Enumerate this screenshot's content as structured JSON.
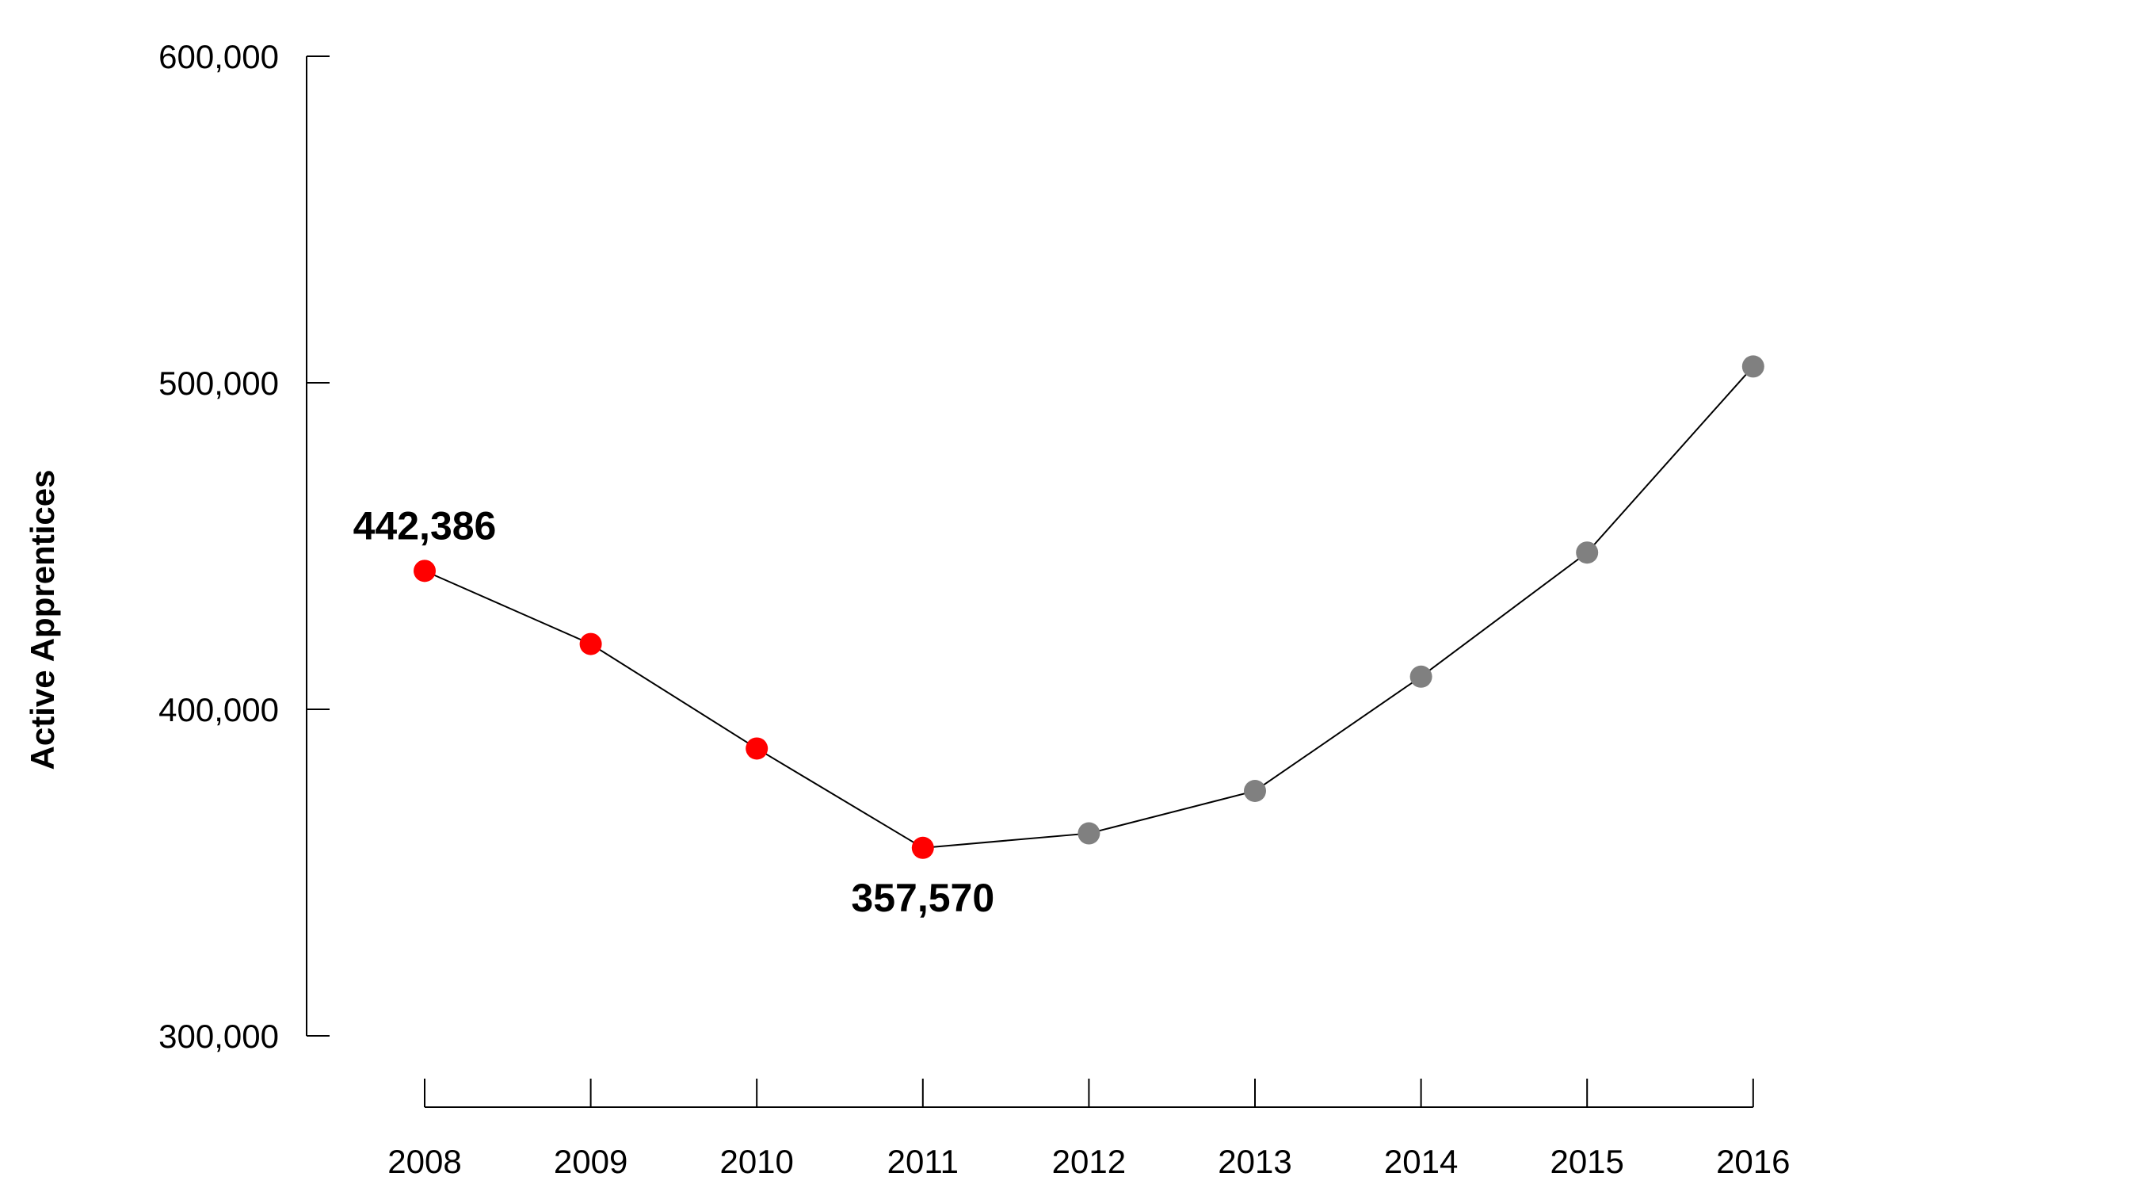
{
  "chart_data": {
    "type": "line",
    "title": "",
    "xlabel": "",
    "ylabel": "Active Apprentices",
    "x": [
      "2008",
      "2009",
      "2010",
      "2011",
      "2012",
      "2013",
      "2014",
      "2015",
      "2016"
    ],
    "values": [
      442386,
      420000,
      388000,
      357570,
      362000,
      375000,
      410000,
      448000,
      505000
    ],
    "point_colors": [
      "#ff0000",
      "#ff0000",
      "#ff0000",
      "#ff0000",
      "#808080",
      "#808080",
      "#808080",
      "#808080",
      "#808080"
    ],
    "line_color": "#000000",
    "ylim": [
      300000,
      600000
    ],
    "yticks": [
      300000,
      400000,
      500000,
      600000
    ],
    "ytick_labels": [
      "300,000",
      "400,000",
      "500,000",
      "600,000"
    ],
    "grid": false,
    "legend": "none",
    "annotations": [
      {
        "x": "2008",
        "value": 442386,
        "text": "442,386",
        "position": "above"
      },
      {
        "x": "2011",
        "value": 357570,
        "text": "357,570",
        "position": "below"
      }
    ]
  }
}
